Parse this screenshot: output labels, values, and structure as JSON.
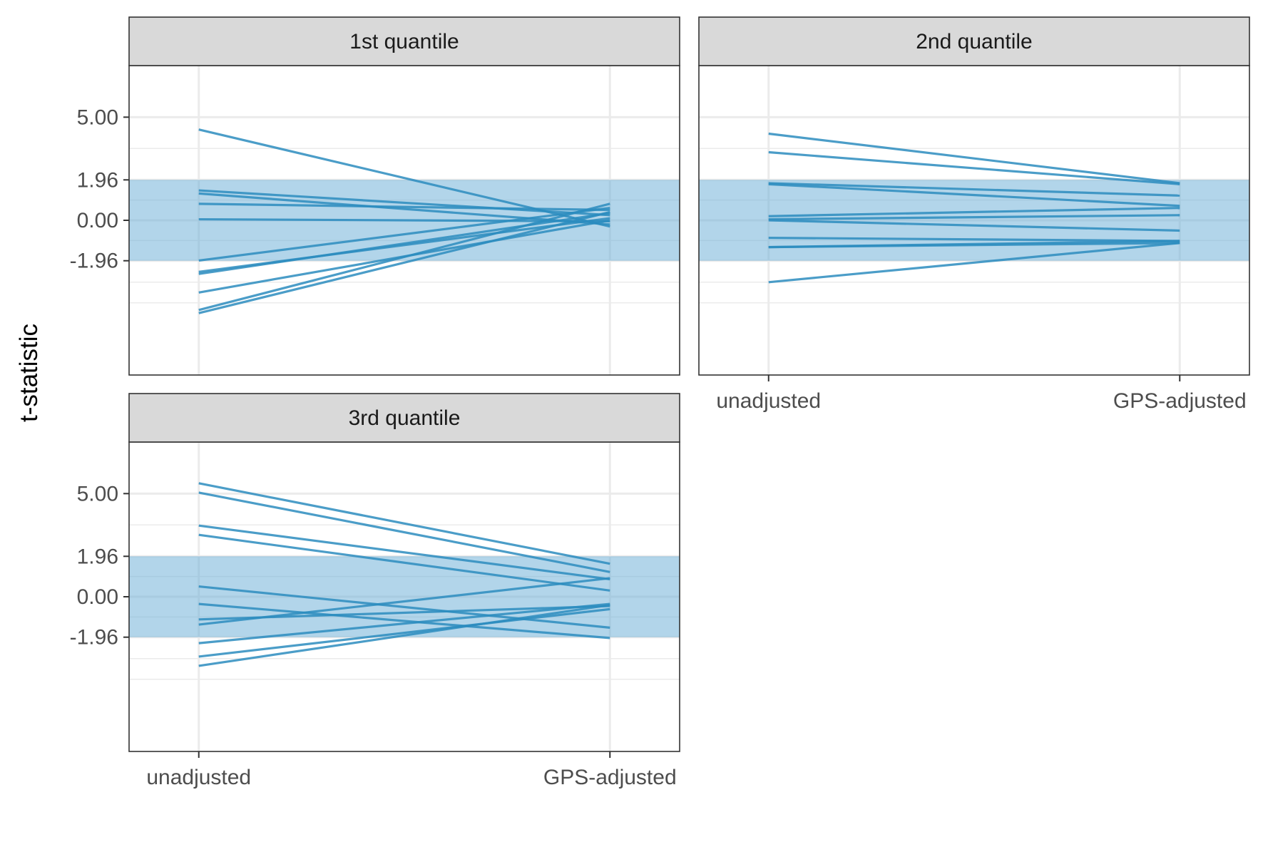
{
  "chart_data": {
    "type": "line",
    "y_title": "t-statistic",
    "categories": [
      "unadjusted",
      "GPS-adjusted"
    ],
    "ylim": [
      -7.5,
      7.5
    ],
    "ticks": [
      {
        "value": 5.0,
        "label": "5.00"
      },
      {
        "value": 1.96,
        "label": "1.96"
      },
      {
        "value": 0.0,
        "label": "0.00"
      },
      {
        "value": -1.96,
        "label": "-1.96"
      }
    ],
    "minor_gridlines": [
      3.48,
      0.98,
      -0.98,
      -3.0,
      -4.0
    ],
    "band": {
      "from": -1.96,
      "to": 1.96,
      "color": "#6baed6"
    },
    "line_color": "#2b8cbe",
    "grid_color": "#ebebeb",
    "strip_color": "#d9d9d9",
    "panels": [
      {
        "label": "1st quantile",
        "series": [
          {
            "values": [
              4.4,
              -0.3
            ]
          },
          {
            "values": [
              1.45,
              0.25
            ]
          },
          {
            "values": [
              1.3,
              -0.2
            ]
          },
          {
            "values": [
              0.8,
              0.5
            ]
          },
          {
            "values": [
              0.05,
              -0.05
            ]
          },
          {
            "values": [
              -1.95,
              0.6
            ]
          },
          {
            "values": [
              -2.5,
              0.1
            ]
          },
          {
            "values": [
              -2.6,
              0.35
            ]
          },
          {
            "values": [
              -3.5,
              0.0
            ]
          },
          {
            "values": [
              -4.35,
              0.8
            ]
          },
          {
            "values": [
              -4.5,
              0.4
            ]
          }
        ]
      },
      {
        "label": "2nd quantile",
        "series": [
          {
            "values": [
              4.2,
              1.8
            ]
          },
          {
            "values": [
              3.3,
              1.75
            ]
          },
          {
            "values": [
              1.8,
              1.2
            ]
          },
          {
            "values": [
              1.75,
              0.7
            ]
          },
          {
            "values": [
              0.2,
              0.6
            ]
          },
          {
            "values": [
              0.05,
              0.25
            ]
          },
          {
            "values": [
              0.0,
              -0.5
            ]
          },
          {
            "values": [
              -0.85,
              -1.0
            ]
          },
          {
            "values": [
              -1.3,
              -1.0
            ]
          },
          {
            "values": [
              -1.3,
              -1.1
            ]
          },
          {
            "values": [
              -3.0,
              -1.1
            ]
          }
        ]
      },
      {
        "label": "3rd quantile",
        "series": [
          {
            "values": [
              5.5,
              1.6
            ]
          },
          {
            "values": [
              5.05,
              1.2
            ]
          },
          {
            "values": [
              3.45,
              0.85
            ]
          },
          {
            "values": [
              3.0,
              0.3
            ]
          },
          {
            "values": [
              0.5,
              -1.5
            ]
          },
          {
            "values": [
              -0.35,
              -2.0
            ]
          },
          {
            "values": [
              -1.1,
              -0.45
            ]
          },
          {
            "values": [
              -1.35,
              0.9
            ]
          },
          {
            "values": [
              -2.25,
              -0.35
            ]
          },
          {
            "values": [
              -2.9,
              -0.6
            ]
          },
          {
            "values": [
              -3.35,
              -0.4
            ]
          }
        ]
      }
    ]
  }
}
